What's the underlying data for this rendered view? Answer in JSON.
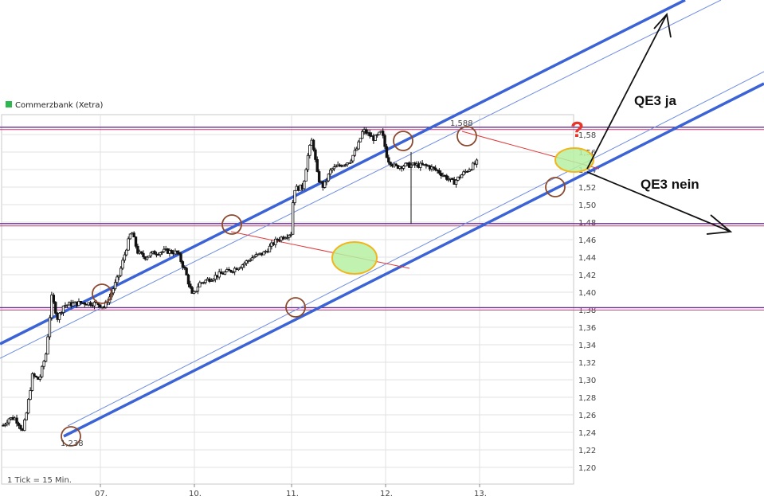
{
  "chart_data": {
    "type": "candlestick",
    "title": "Commerzbank (Xetra)",
    "legend": {
      "name": "Commerzbank (Xetra)",
      "color": "#2db84d",
      "position": "top-left"
    },
    "interval_note": "1 Tick = 15 Min.",
    "x_ticks": [
      "07.",
      "10.",
      "11.",
      "12.",
      "13."
    ],
    "y_ticks": [
      "1,20",
      "1,22",
      "1,24",
      "1,26",
      "1,28",
      "1,30",
      "1,32",
      "1,34",
      "1,36",
      "1,38",
      "1,40",
      "1,42",
      "1,44",
      "1,46",
      "1,48",
      "1,50",
      "1,52",
      "1,54",
      "1,56",
      "1,58"
    ],
    "ylim": [
      1.19,
      1.59
    ],
    "grid": true,
    "extreme_labels": {
      "low": "1,238",
      "high": "1,588"
    },
    "price_path": [
      {
        "t": 0.0,
        "v": 1.248
      },
      {
        "t": 0.06,
        "v": 1.256
      },
      {
        "t": 0.12,
        "v": 1.256
      },
      {
        "t": 0.16,
        "v": 1.25
      },
      {
        "t": 0.2,
        "v": 1.241
      },
      {
        "t": 0.24,
        "v": 1.262
      },
      {
        "t": 0.3,
        "v": 1.305
      },
      {
        "t": 0.37,
        "v": 1.3
      },
      {
        "t": 0.44,
        "v": 1.33
      },
      {
        "t": 0.5,
        "v": 1.395
      },
      {
        "t": 0.56,
        "v": 1.37
      },
      {
        "t": 0.62,
        "v": 1.385
      },
      {
        "t": 0.8,
        "v": 1.388
      },
      {
        "t": 0.97,
        "v": 1.387
      },
      {
        "t": 1.04,
        "v": 1.383
      },
      {
        "t": 1.1,
        "v": 1.395
      },
      {
        "t": 1.2,
        "v": 1.42
      },
      {
        "t": 1.27,
        "v": 1.448
      },
      {
        "t": 1.33,
        "v": 1.47
      },
      {
        "t": 1.4,
        "v": 1.445
      },
      {
        "t": 1.47,
        "v": 1.44
      },
      {
        "t": 1.57,
        "v": 1.445
      },
      {
        "t": 1.7,
        "v": 1.447
      },
      {
        "t": 1.82,
        "v": 1.445
      },
      {
        "t": 1.9,
        "v": 1.425
      },
      {
        "t": 1.98,
        "v": 1.395
      },
      {
        "t": 2.05,
        "v": 1.41
      },
      {
        "t": 2.15,
        "v": 1.415
      },
      {
        "t": 2.25,
        "v": 1.42
      },
      {
        "t": 2.38,
        "v": 1.425
      },
      {
        "t": 2.5,
        "v": 1.432
      },
      {
        "t": 2.6,
        "v": 1.44
      },
      {
        "t": 2.72,
        "v": 1.445
      },
      {
        "t": 2.85,
        "v": 1.46
      },
      {
        "t": 3.0,
        "v": 1.468
      },
      {
        "t": 3.02,
        "v": 1.518
      },
      {
        "t": 3.12,
        "v": 1.52
      },
      {
        "t": 3.18,
        "v": 1.56
      },
      {
        "t": 3.22,
        "v": 1.575
      },
      {
        "t": 3.28,
        "v": 1.53
      },
      {
        "t": 3.34,
        "v": 1.52
      },
      {
        "t": 3.42,
        "v": 1.54
      },
      {
        "t": 3.52,
        "v": 1.545
      },
      {
        "t": 3.62,
        "v": 1.55
      },
      {
        "t": 3.7,
        "v": 1.565
      },
      {
        "t": 3.76,
        "v": 1.585
      },
      {
        "t": 3.82,
        "v": 1.58
      },
      {
        "t": 3.88,
        "v": 1.575
      },
      {
        "t": 3.96,
        "v": 1.583
      },
      {
        "t": 4.02,
        "v": 1.552
      },
      {
        "t": 4.1,
        "v": 1.543
      },
      {
        "t": 4.2,
        "v": 1.545
      },
      {
        "t": 4.32,
        "v": 1.545
      },
      {
        "t": 4.45,
        "v": 1.544
      },
      {
        "t": 4.56,
        "v": 1.538
      },
      {
        "t": 4.66,
        "v": 1.53
      },
      {
        "t": 4.72,
        "v": 1.525
      },
      {
        "t": 4.82,
        "v": 1.535
      },
      {
        "t": 4.9,
        "v": 1.542
      },
      {
        "t": 4.97,
        "v": 1.548
      }
    ],
    "horizontal_lines": [
      1.587,
      1.477,
      1.381
    ],
    "annotations": {
      "up_label": "QE3 ja",
      "down_label": "QE3 nein",
      "question": "?"
    },
    "colors": {
      "channel": "#3b63d6",
      "channel_thin": "#6f8ee0",
      "resistance": "#6a2d8a",
      "trendline": "#e03a3a",
      "circle": "#8b4a2e",
      "highlight_fill": "#b6f0a2",
      "highlight_stroke": "#f2b51c",
      "candle": "#111111",
      "grid": "#e2e2e2",
      "legend_swatch": "#2db84d"
    }
  }
}
